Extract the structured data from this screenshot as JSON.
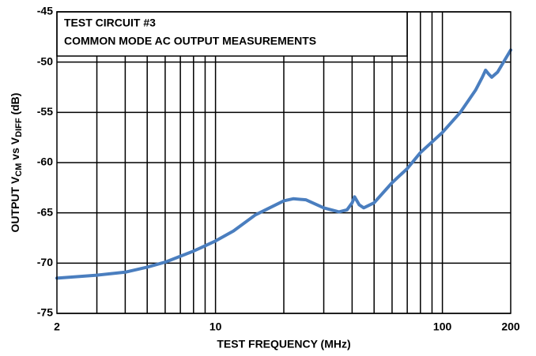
{
  "chart_data": {
    "type": "line",
    "title_lines": [
      "TEST CIRCUIT #3",
      "COMMON MODE AC OUTPUT MEASUREMENTS"
    ],
    "x_label": "TEST FREQUENCY (MHz)",
    "y_label_parts": [
      {
        "text": "OUTPUT V"
      },
      {
        "text": "CM",
        "sub": true
      },
      {
        "text": " vs V"
      },
      {
        "text": "DIFF",
        "sub": true
      },
      {
        "text": " (dB)"
      }
    ],
    "x_log": true,
    "xlim": [
      2,
      200
    ],
    "xticks": [
      2,
      10,
      100,
      200
    ],
    "x_minor_grid": [
      3,
      4,
      5,
      6,
      7,
      8,
      9,
      10,
      20,
      30,
      40,
      50,
      60,
      70,
      80,
      90,
      100
    ],
    "ylim": [
      -75,
      -45
    ],
    "yticks": [
      -45,
      -50,
      -55,
      -60,
      -65,
      -70,
      -75
    ],
    "grid": true,
    "series": [
      {
        "name": "Output",
        "color": "#4a7ebf",
        "x": [
          2,
          3,
          4,
          5,
          6,
          8,
          10,
          12,
          15,
          20,
          22,
          25,
          30,
          35,
          38,
          40,
          41,
          43,
          45,
          50,
          60,
          70,
          80,
          100,
          120,
          140,
          150,
          155,
          160,
          165,
          175,
          200
        ],
        "values": [
          -71.5,
          -71.2,
          -70.9,
          -70.4,
          -69.9,
          -68.8,
          -67.8,
          -66.8,
          -65.2,
          -63.8,
          -63.6,
          -63.7,
          -64.5,
          -64.9,
          -64.7,
          -64.0,
          -63.4,
          -64.2,
          -64.5,
          -64.0,
          -62.0,
          -60.6,
          -59.0,
          -57.0,
          -55.0,
          -52.8,
          -51.5,
          -50.8,
          -51.2,
          -51.5,
          -51.0,
          -48.8
        ]
      }
    ]
  }
}
